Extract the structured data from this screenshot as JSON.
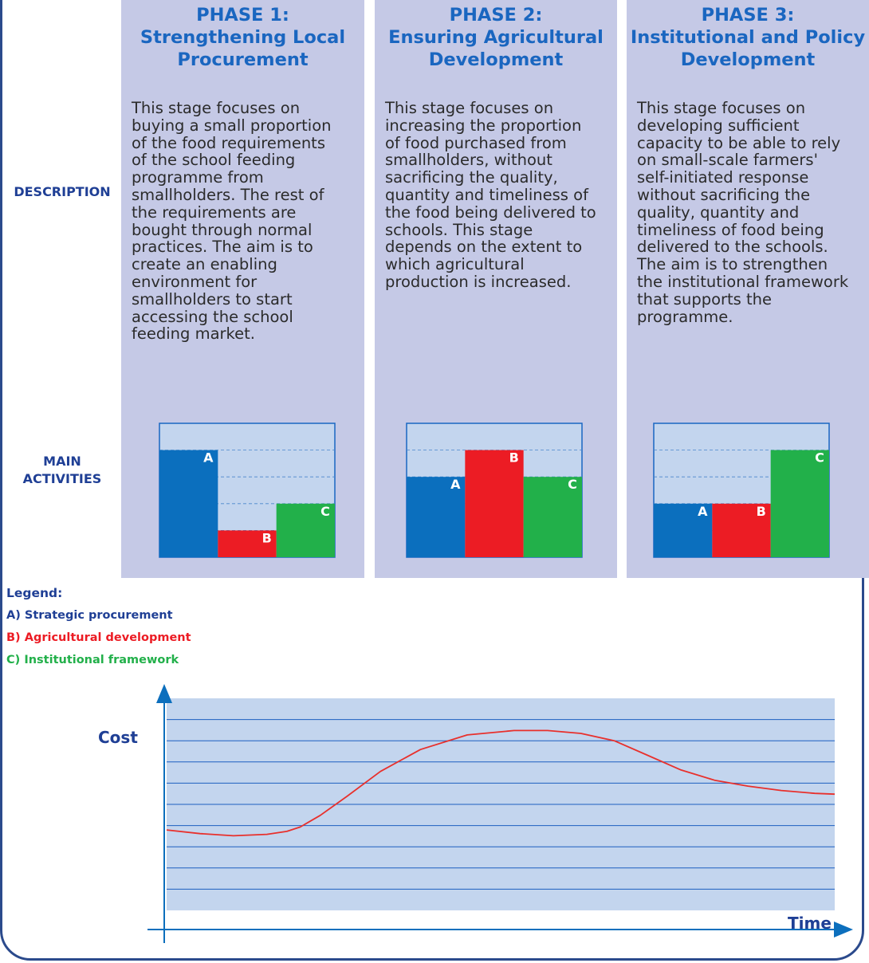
{
  "row_labels": {
    "description": "DESCRIPTION",
    "main_activities": "MAIN\nACTIVITIES"
  },
  "phases": [
    {
      "title": "PHASE 1:\nStrengthening Local\nProcurement",
      "description": "This stage focuses on\nbuying a small proportion\nof the food requirements\nof the school feeding\nprogramme from\nsmallholders. The rest of\nthe requirements are\nbought through normal\npractices. The aim is to\ncreate an enabling\nenvironment for\nsmallholders to start\naccessing the school\nfeeding market."
    },
    {
      "title": "PHASE 2:\nEnsuring Agricultural\nDevelopment",
      "description": "This stage focuses on\nincreasing the proportion\nof food purchased from\nsmallholders, without\nsacrificing the quality,\nquantity and timeliness of\nthe food being delivered to\nschools. This stage\ndepends on the extent to\nwhich agricultural\nproduction is increased."
    },
    {
      "title": "PHASE 3:\nInstitutional and Policy\nDevelopment",
      "description": "This stage focuses on\ndeveloping sufficient\ncapacity to be able to rely\non small-scale farmers'\nself-initiated response\nwithout sacrificing the\nquality, quantity and\ntimeliness of food being\ndelivered to the schools.\nThe aim is to strengthen\nthe institutional framework\nthat supports the\nprogramme."
    }
  ],
  "activity_levels": {
    "scale_max": 5,
    "phases": [
      {
        "A": 4,
        "B": 1,
        "C": 2
      },
      {
        "A": 3,
        "B": 4,
        "C": 3
      },
      {
        "A": 2,
        "B": 2,
        "C": 4
      }
    ]
  },
  "activity_letters": [
    "A",
    "B",
    "C"
  ],
  "colors": {
    "A": "#0b6fbe",
    "B": "#ec1c24",
    "C": "#22b04a",
    "panel": "#c5c9e6",
    "box": "#c3d5ee",
    "chart_bg": "#c3d5ee",
    "axis": "#0c6fbd",
    "cost_line": "#e8302c",
    "label_dark": "#1f3f95"
  },
  "legend": {
    "title": "Legend:",
    "items": [
      {
        "key": "A",
        "label": "A) Strategic procurement"
      },
      {
        "key": "B",
        "label": "B) Agricultural development"
      },
      {
        "key": "C",
        "label": "C) Institutional framework"
      }
    ]
  },
  "chart_data": {
    "type": "line",
    "xlabel": "Time",
    "ylabel": "Cost",
    "grid": true,
    "series": [
      {
        "x": [
          0,
          5,
          10,
          15,
          18,
          20,
          23,
          27,
          32,
          38,
          45,
          52,
          57,
          62,
          67,
          72,
          77,
          82,
          87,
          92,
          97,
          100
        ],
        "values": [
          20,
          17.5,
          16,
          17,
          19,
          22,
          30,
          43,
          60,
          75,
          85,
          88,
          88,
          86,
          81,
          71,
          61,
          54,
          50,
          47,
          45,
          44.5
        ]
      }
    ],
    "xlim": [
      0,
      100
    ],
    "ylim": [
      -35,
      110
    ]
  }
}
